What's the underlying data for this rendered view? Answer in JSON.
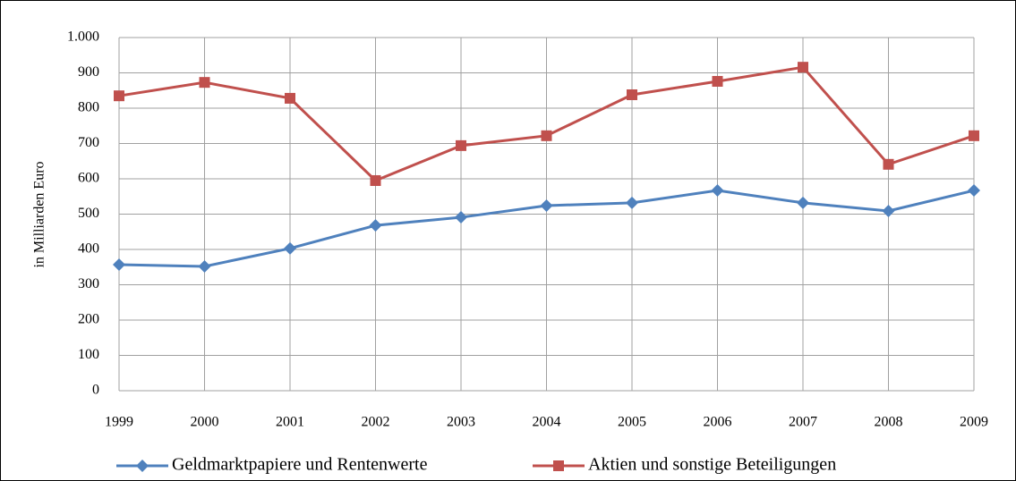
{
  "chart_data": {
    "type": "line",
    "y_label": "in Milliarden Euro",
    "categories": [
      "1999",
      "2000",
      "2001",
      "2002",
      "2003",
      "2004",
      "2005",
      "2006",
      "2007",
      "2008",
      "2009"
    ],
    "series": [
      {
        "name": "Geldmarktpapiere und Rentenwerte",
        "color": "#4f81bd",
        "marker": "diamond",
        "values": [
          357,
          352,
          403,
          468,
          491,
          524,
          532,
          567,
          532,
          509,
          567
        ]
      },
      {
        "name": "Aktien und sonstige Beteiligungen",
        "color": "#c0504d",
        "marker": "square",
        "values": [
          835,
          873,
          828,
          595,
          694,
          722,
          838,
          876,
          916,
          641,
          722
        ]
      }
    ],
    "ylim": [
      0,
      1000
    ],
    "yticks": [
      0,
      100,
      200,
      300,
      400,
      500,
      600,
      700,
      800,
      900,
      {
        "value": 1000,
        "label": "1.000"
      }
    ],
    "grid": true,
    "legend": "bottom"
  }
}
